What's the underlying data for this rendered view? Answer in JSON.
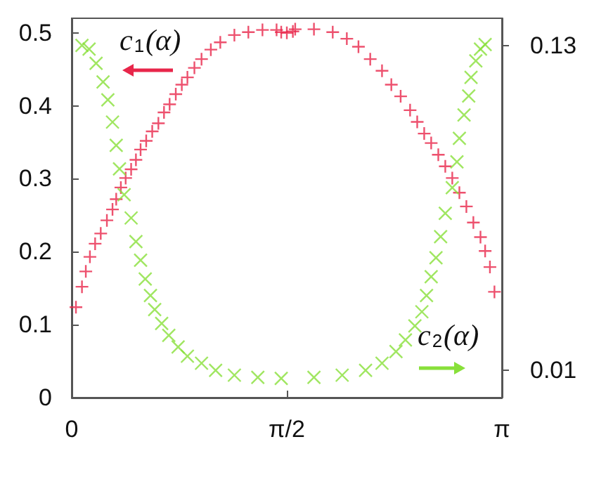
{
  "chart_data": {
    "type": "scatter",
    "marker": "cross",
    "xlim": [
      0,
      3.1416
    ],
    "xticks": [
      0,
      {
        "value": 1.5708,
        "label": "π/2"
      },
      {
        "value": 3.1416,
        "label": "π"
      }
    ],
    "ylim": [
      0,
      0.52
    ],
    "yticks": [
      0,
      0.1,
      0.2,
      0.3,
      0.4,
      0.5
    ],
    "y2lim": [
      0,
      0.14
    ],
    "y2ticks": [
      0.01,
      0.13
    ],
    "annotations": [
      "c$_{1}$(α)",
      "c$_{2}$(α)"
    ],
    "series": [
      {
        "color": "#e8264a",
        "x": [
          0.031,
          0.075,
          0.103,
          0.133,
          0.171,
          0.212,
          0.257,
          0.298,
          0.325,
          0.359,
          0.394,
          0.434,
          0.469,
          0.503,
          0.544,
          0.588,
          0.633,
          0.674,
          0.715,
          0.76,
          0.804,
          0.845,
          0.896,
          0.948,
          1.016,
          1.085,
          1.188,
          1.29,
          1.393,
          1.496,
          1.53,
          1.571,
          1.615,
          1.632,
          1.769,
          1.906,
          2.009,
          2.094,
          2.18,
          2.266,
          2.334,
          2.402,
          2.471,
          2.523,
          2.574,
          2.625,
          2.677,
          2.728,
          2.779,
          2.831,
          2.882,
          2.933,
          2.985,
          3.019,
          3.054,
          3.087
        ],
        "values": [
          0.124,
          0.152,
          0.173,
          0.193,
          0.211,
          0.225,
          0.243,
          0.258,
          0.272,
          0.288,
          0.301,
          0.313,
          0.326,
          0.34,
          0.352,
          0.365,
          0.376,
          0.391,
          0.402,
          0.416,
          0.429,
          0.439,
          0.452,
          0.464,
          0.477,
          0.487,
          0.497,
          0.501,
          0.504,
          0.504,
          0.501,
          0.5,
          0.502,
          0.505,
          0.505,
          0.501,
          0.492,
          0.481,
          0.464,
          0.448,
          0.429,
          0.413,
          0.394,
          0.378,
          0.362,
          0.349,
          0.333,
          0.317,
          0.301,
          0.281,
          0.262,
          0.24,
          0.22,
          0.201,
          0.179,
          0.145
        ]
      },
      {
        "color": "#88e03a",
        "axis": "y2",
        "x": [
          0.075,
          0.127,
          0.178,
          0.229,
          0.264,
          0.298,
          0.325,
          0.349,
          0.383,
          0.434,
          0.469,
          0.503,
          0.537,
          0.575,
          0.606,
          0.657,
          0.709,
          0.777,
          0.845,
          0.948,
          1.051,
          1.188,
          1.359,
          1.53,
          1.769,
          1.975,
          2.146,
          2.266,
          2.368,
          2.437,
          2.506,
          2.557,
          2.591,
          2.625,
          2.66,
          2.694,
          2.728,
          2.779,
          2.813,
          2.831,
          2.865,
          2.899,
          2.916,
          2.951,
          2.985,
          3.019
        ],
        "values": [
          0.13,
          0.1286,
          0.1234,
          0.1165,
          0.1099,
          0.1017,
          0.0931,
          0.0844,
          0.0749,
          0.0663,
          0.0576,
          0.0507,
          0.0438,
          0.0377,
          0.0325,
          0.0274,
          0.023,
          0.0187,
          0.0153,
          0.0127,
          0.0101,
          0.0083,
          0.0075,
          0.0071,
          0.0075,
          0.0083,
          0.0101,
          0.0127,
          0.017,
          0.0213,
          0.0265,
          0.0317,
          0.0377,
          0.0446,
          0.0516,
          0.0594,
          0.068,
          0.0775,
          0.087,
          0.0957,
          0.1043,
          0.1113,
          0.1182,
          0.1243,
          0.1286,
          0.1303
        ]
      }
    ]
  }
}
